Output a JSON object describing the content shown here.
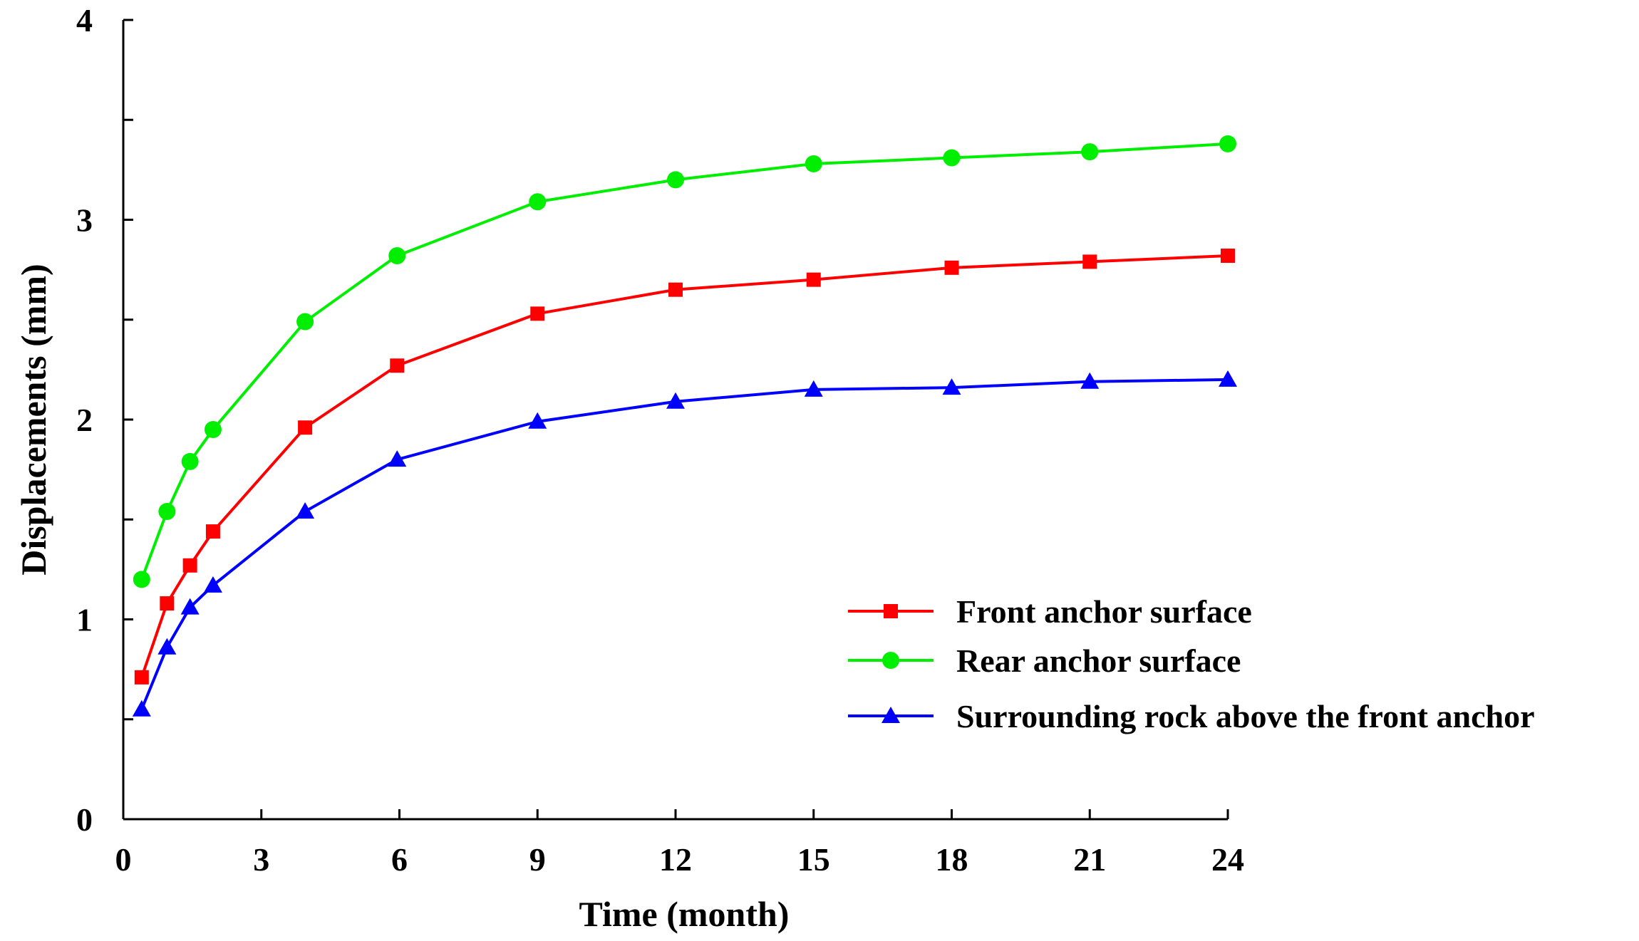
{
  "chart_data": {
    "type": "line",
    "title": "",
    "xlabel": "Time (month)",
    "ylabel": "Displacements (mm)",
    "xlim": [
      0,
      24
    ],
    "ylim": [
      0,
      4
    ],
    "xticks": [
      0,
      3,
      6,
      9,
      12,
      15,
      18,
      21,
      24
    ],
    "xtick_labels": [
      "0",
      "3",
      "6",
      "9",
      "12",
      "15",
      "18",
      "21",
      "24"
    ],
    "yticks": [
      0,
      0.5,
      1,
      1.5,
      2,
      2.5,
      3,
      3.5,
      4
    ],
    "ytick_labels": [
      "0",
      "",
      "1",
      "",
      "2",
      "",
      "3",
      "",
      "4"
    ],
    "grid": false,
    "legend_position": "right-center",
    "series": [
      {
        "name": "Front anchor surface",
        "color": "#ff0000",
        "marker": "square",
        "x": [
          0.4,
          0.95,
          1.45,
          1.95,
          3.95,
          5.95,
          9,
          12,
          15,
          18,
          21,
          24
        ],
        "values": [
          0.71,
          1.08,
          1.27,
          1.44,
          1.96,
          2.27,
          2.53,
          2.65,
          2.7,
          2.76,
          2.79,
          2.82
        ]
      },
      {
        "name": "Rear anchor surface",
        "color": "#00ee00",
        "marker": "circle",
        "x": [
          0.4,
          0.95,
          1.45,
          1.95,
          3.95,
          5.95,
          9,
          12,
          15,
          18,
          21,
          24
        ],
        "values": [
          1.2,
          1.54,
          1.79,
          1.95,
          2.49,
          2.82,
          3.09,
          3.2,
          3.28,
          3.31,
          3.34,
          3.38
        ]
      },
      {
        "name": "Surrounding rock above the front anchor",
        "color": "#0000ff",
        "marker": "triangle",
        "x": [
          0.4,
          0.95,
          1.45,
          1.95,
          3.95,
          5.95,
          9,
          12,
          15,
          18,
          21,
          24
        ],
        "values": [
          0.55,
          0.86,
          1.06,
          1.17,
          1.54,
          1.8,
          1.99,
          2.09,
          2.15,
          2.16,
          2.19,
          2.2
        ]
      }
    ]
  }
}
